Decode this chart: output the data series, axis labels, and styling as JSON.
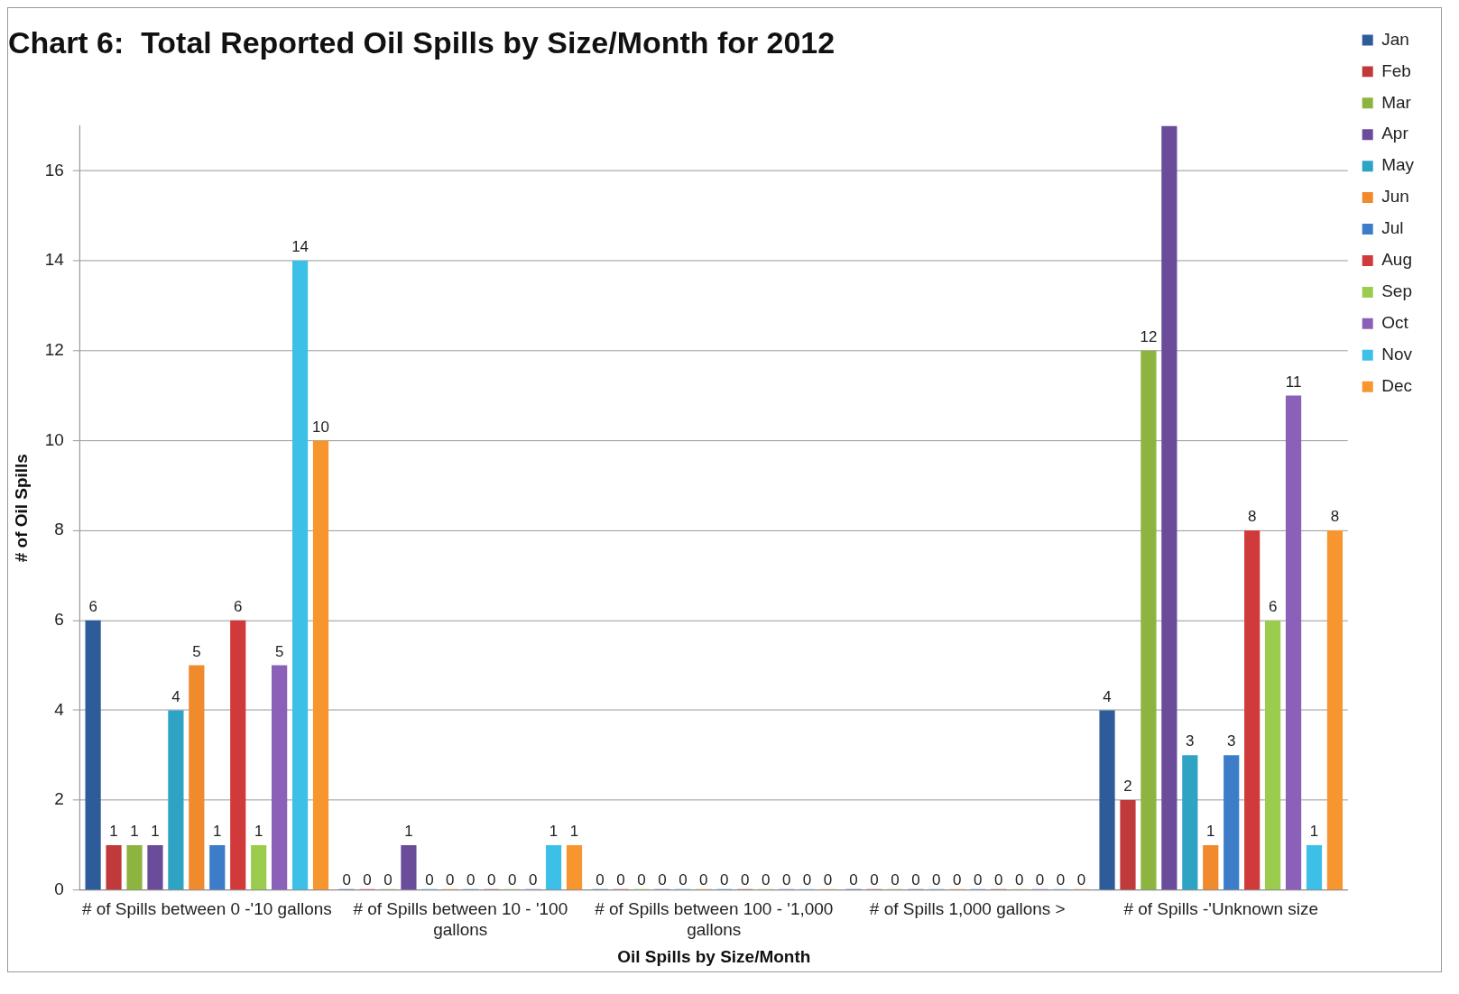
{
  "chart_data": {
    "type": "bar",
    "title": "Chart 6:  Total Reported Oil Spills by Size/Month for 2012",
    "xlabel": "Oil Spills by Size/Month",
    "ylabel": "# of Oil Spills",
    "categories": [
      "# of Spills between 0 -'10 gallons",
      "# of Spills between 10 - '100 gallons",
      "# of Spills between 100 - '1,000 gallons",
      "# of Spills 1,000 gallons >",
      "# of Spills -'Unknown size"
    ],
    "series": [
      {
        "name": "Jan",
        "color": "#2e5c9a",
        "values": [
          6,
          0,
          0,
          0,
          4
        ],
        "value_labels": [
          "6",
          "0",
          "0",
          "0",
          "4"
        ]
      },
      {
        "name": "Feb",
        "color": "#c0393b",
        "values": [
          1,
          0,
          0,
          0,
          2
        ],
        "value_labels": [
          "1",
          "0",
          "0",
          "0",
          "2"
        ]
      },
      {
        "name": "Mar",
        "color": "#8cb43f",
        "values": [
          1,
          0,
          0,
          0,
          12
        ],
        "value_labels": [
          "1",
          "0",
          "0",
          "0",
          "12"
        ]
      },
      {
        "name": "Apr",
        "color": "#6b4c9a",
        "values": [
          1,
          1,
          0,
          0,
          17
        ],
        "value_labels": [
          "1",
          "1",
          "0",
          "0",
          null
        ]
      },
      {
        "name": "May",
        "color": "#2fa3c4",
        "values": [
          4,
          0,
          0,
          0,
          3
        ],
        "value_labels": [
          "4",
          "0",
          "0",
          "0",
          "3"
        ]
      },
      {
        "name": "Jun",
        "color": "#f08a2c",
        "values": [
          5,
          0,
          0,
          0,
          1
        ],
        "value_labels": [
          "5",
          "0",
          "0",
          "0",
          "1"
        ]
      },
      {
        "name": "Jul",
        "color": "#3d7cc9",
        "values": [
          1,
          0,
          0,
          0,
          3
        ],
        "value_labels": [
          "1",
          "0",
          "0",
          "0",
          "3"
        ]
      },
      {
        "name": "Aug",
        "color": "#d03a3a",
        "values": [
          6,
          0,
          0,
          0,
          8
        ],
        "value_labels": [
          "6",
          "0",
          "0",
          "0",
          "8"
        ]
      },
      {
        "name": "Sep",
        "color": "#9ccc4d",
        "values": [
          1,
          0,
          0,
          0,
          6
        ],
        "value_labels": [
          "1",
          "0",
          "0",
          "0",
          "6"
        ]
      },
      {
        "name": "Oct",
        "color": "#8b60b8",
        "values": [
          5,
          0,
          0,
          0,
          11
        ],
        "value_labels": [
          "5",
          "0",
          "0",
          "0",
          "11"
        ]
      },
      {
        "name": "Nov",
        "color": "#3cc0e8",
        "values": [
          14,
          1,
          0,
          0,
          1
        ],
        "value_labels": [
          "14",
          "1",
          "0",
          "0",
          "1"
        ]
      },
      {
        "name": "Dec",
        "color": "#f7962e",
        "values": [
          10,
          1,
          0,
          0,
          8
        ],
        "value_labels": [
          "10",
          "1",
          "0",
          "0",
          "8"
        ]
      }
    ],
    "ylim": [
      0,
      17
    ],
    "yticks": [
      0,
      2,
      4,
      6,
      8,
      10,
      12,
      14,
      16
    ],
    "grid": "y",
    "legend": "right"
  }
}
